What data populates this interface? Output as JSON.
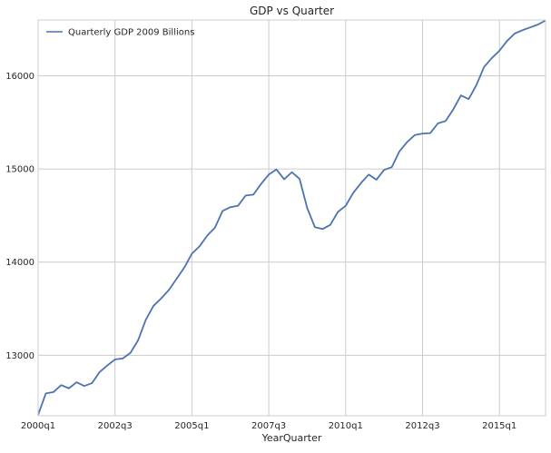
{
  "chart_data": {
    "type": "line",
    "title": "GDP vs Quarter",
    "xlabel": "YearQuarter",
    "ylabel": "",
    "grid": true,
    "legend_position": "top-left",
    "ylim": [
      12350,
      16600
    ],
    "yticks": [
      13000,
      14000,
      15000,
      16000
    ],
    "xtick_labels": [
      "2000q1",
      "2002q3",
      "2005q1",
      "2007q3",
      "2010q1",
      "2012q3",
      "2015q1"
    ],
    "x": [
      "2000q1",
      "2000q2",
      "2000q3",
      "2000q4",
      "2001q1",
      "2001q2",
      "2001q3",
      "2001q4",
      "2002q1",
      "2002q2",
      "2002q3",
      "2002q4",
      "2003q1",
      "2003q2",
      "2003q3",
      "2003q4",
      "2004q1",
      "2004q2",
      "2004q3",
      "2004q4",
      "2005q1",
      "2005q2",
      "2005q3",
      "2005q4",
      "2006q1",
      "2006q2",
      "2006q3",
      "2006q4",
      "2007q1",
      "2007q2",
      "2007q3",
      "2007q4",
      "2008q1",
      "2008q2",
      "2008q3",
      "2008q4",
      "2009q1",
      "2009q2",
      "2009q3",
      "2009q4",
      "2010q1",
      "2010q2",
      "2010q3",
      "2010q4",
      "2011q1",
      "2011q2",
      "2011q3",
      "2011q4",
      "2012q1",
      "2012q2",
      "2012q3",
      "2012q4",
      "2013q1",
      "2013q2",
      "2013q3",
      "2013q4",
      "2014q1",
      "2014q2",
      "2014q3",
      "2014q4",
      "2015q1",
      "2015q2",
      "2015q3",
      "2015q4",
      "2016q1",
      "2016q2",
      "2016q3"
    ],
    "series": [
      {
        "name": "Quarterly GDP 2009 Billions",
        "color": "#4c72b0",
        "values": [
          12360,
          12590,
          12605,
          12680,
          12645,
          12710,
          12670,
          12700,
          12820,
          12890,
          12955,
          12965,
          13025,
          13160,
          13380,
          13530,
          13610,
          13700,
          13820,
          13940,
          14090,
          14170,
          14285,
          14370,
          14550,
          14590,
          14605,
          14715,
          14725,
          14840,
          14940,
          14995,
          14890,
          14965,
          14895,
          14580,
          14375,
          14355,
          14400,
          14540,
          14605,
          14745,
          14850,
          14940,
          14885,
          14990,
          15020,
          15190,
          15290,
          15365,
          15380,
          15385,
          15490,
          15515,
          15640,
          15790,
          15750,
          15900,
          16095,
          16190,
          16270,
          16375,
          16455,
          16490,
          16520,
          16550,
          16595
        ]
      }
    ]
  }
}
